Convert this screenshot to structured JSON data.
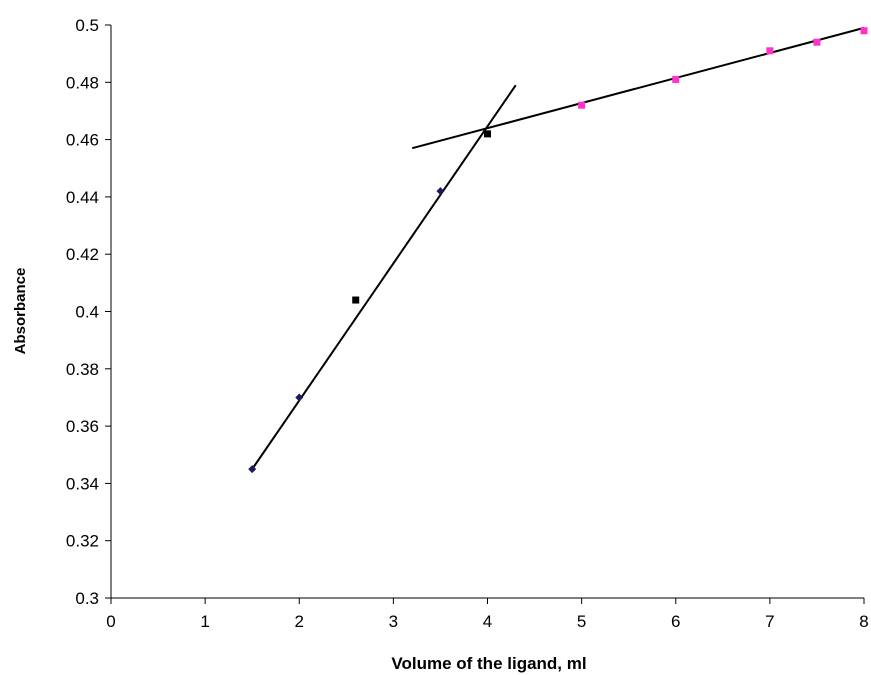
{
  "chart_data": {
    "type": "scatter",
    "title": "",
    "xlabel": "Volume of the ligand, ml",
    "ylabel": "Absorbance",
    "xlim": [
      0,
      8
    ],
    "ylim": [
      0.3,
      0.5
    ],
    "x_ticks": [
      0,
      1,
      2,
      3,
      4,
      5,
      6,
      7,
      8
    ],
    "x_tick_labels": [
      "0",
      "1",
      "2",
      "3",
      "4",
      "5",
      "6",
      "7",
      "8"
    ],
    "y_ticks": [
      0.3,
      0.32,
      0.34,
      0.36,
      0.38,
      0.4,
      0.42,
      0.44,
      0.46,
      0.48,
      0.5
    ],
    "y_tick_labels": [
      "0.3",
      "0.32",
      "0.34",
      "0.36",
      "0.38",
      "0.4",
      "0.42",
      "0.44",
      "0.46",
      "0.48",
      "0.5"
    ],
    "grid": false,
    "legend": "none",
    "series": [
      {
        "marker": "diamond",
        "color": "#1a1a5c",
        "points": [
          [
            1.5,
            0.345
          ],
          [
            2.0,
            0.37
          ],
          [
            3.5,
            0.442
          ]
        ]
      },
      {
        "marker": "square",
        "color": "#000000",
        "points": [
          [
            2.6,
            0.404
          ],
          [
            4.0,
            0.462
          ]
        ]
      },
      {
        "marker": "square",
        "color": "#ff33cc",
        "points": [
          [
            5.0,
            0.472
          ],
          [
            6.0,
            0.481
          ],
          [
            7.0,
            0.491
          ],
          [
            7.5,
            0.494
          ],
          [
            8.0,
            0.498
          ]
        ]
      }
    ],
    "fit_lines": [
      {
        "x": [
          1.5,
          4.3
        ],
        "y": [
          0.345,
          0.479
        ]
      },
      {
        "x": [
          3.2,
          8.0
        ],
        "y": [
          0.457,
          0.499
        ]
      }
    ]
  }
}
